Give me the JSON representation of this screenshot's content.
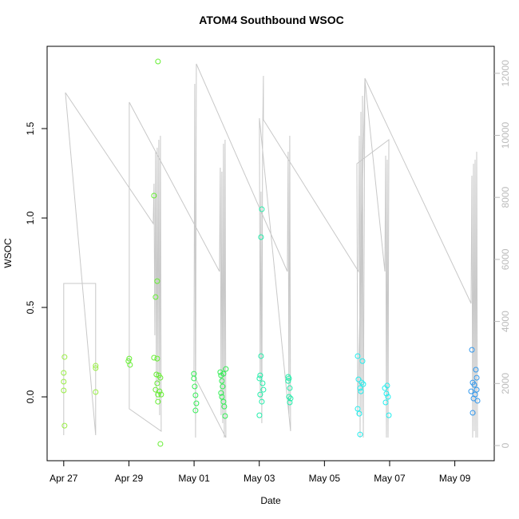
{
  "chart_data": {
    "type": "scatter",
    "title": "ATOM4 Southbound WSOC",
    "x_label": "Date",
    "y_label": "WSOC",
    "xlim": [
      -0.51,
      13.21
    ],
    "xticks": [
      {
        "value": 0,
        "label": "Apr 27"
      },
      {
        "value": 2,
        "label": "Apr 29"
      },
      {
        "value": 4,
        "label": "May 01"
      },
      {
        "value": 6,
        "label": "May 03"
      },
      {
        "value": 8,
        "label": "May 05"
      },
      {
        "value": 10,
        "label": "May 07"
      },
      {
        "value": 12,
        "label": "May 09"
      }
    ],
    "ylim": [
      -0.357,
      1.96
    ],
    "yticks": [
      {
        "value": 0,
        "label": "0.0"
      },
      0.5,
      {
        "value": 1,
        "label": "1.0"
      },
      1.5
    ],
    "y2lim": [
      -489,
      12870
    ],
    "y2ticks": [
      0,
      2000,
      4000,
      6000,
      8000,
      10000,
      12000
    ],
    "point_groups": [
      {
        "color": "#99ee44",
        "x": [
          0.025,
          0,
          0,
          0,
          0.025,
          0.98,
          0.98,
          0.98
        ],
        "values": [
          0.223,
          0.134,
          0.085,
          0.036,
          -0.161,
          0.174,
          0.161,
          0.027
        ]
      },
      {
        "color": "#66ee33",
        "x": [
          2.01,
          2.034,
          1.985,
          2.892,
          2.77,
          2.868,
          2.819,
          2.77,
          2.868,
          2.819,
          2.843,
          2.917,
          2.966,
          2.868,
          2.941,
          2.99,
          2.892,
          2.966,
          2.892
        ],
        "values": [
          0.214,
          0.179,
          0.2,
          1.875,
          1.125,
          0.647,
          0.558,
          0.219,
          0.214,
          0.04,
          0.125,
          0.12,
          0.107,
          0.076,
          0.031,
          0.013,
          -0.027,
          -0.263,
          0.013
        ]
      },
      {
        "color": "#33ee55",
        "x": [
          3.995,
          3.995,
          4.02,
          4.044,
          4.069,
          4.044,
          4.804,
          4.828,
          4.853,
          4.877,
          4.828,
          4.902,
          4.926,
          4.951,
          4.975,
          4.902,
          4.853
        ],
        "values": [
          0.129,
          0.103,
          0.058,
          0.009,
          -0.036,
          -0.076,
          0.138,
          0.12,
          0.089,
          0.058,
          0.022,
          -0.027,
          -0.054,
          -0.107,
          0.156,
          0.129,
          0
        ]
      },
      {
        "color": "#22eeaa",
        "x": [
          6.078,
          6.054,
          6.054,
          6.029,
          6.005,
          6.103,
          6.127,
          6.029,
          6.078,
          6.005,
          6.912,
          6.887,
          6.936,
          6.912,
          6.961,
          6.936,
          6.887
        ],
        "values": [
          1.049,
          0.893,
          0.228,
          0.12,
          0.103,
          0.076,
          0.04,
          0.013,
          -0.027,
          -0.103,
          0.103,
          0.089,
          0.049,
          0,
          -0.009,
          -0.031,
          0.112
        ]
      },
      {
        "color": "#22eeee",
        "x": [
          9.02,
          9.167,
          9.044,
          9.093,
          9.191,
          9.118,
          9.142,
          9.02,
          9.069,
          9.093,
          9.853,
          9.926,
          9.902,
          9.951,
          9.877,
          9.975
        ],
        "values": [
          0.228,
          0.2,
          0.098,
          0.049,
          0.071,
          0.031,
          0.08,
          -0.067,
          -0.094,
          -0.21,
          0.049,
          0.063,
          0.018,
          0,
          -0.031,
          -0.103
        ]
      },
      {
        "color": "#3399ee",
        "x": [
          12.525,
          12.647,
          12.672,
          12.549,
          12.598,
          12.5,
          12.623,
          12.574,
          12.696,
          12.549,
          12.672
        ],
        "values": [
          0.263,
          0.152,
          0.107,
          0.08,
          0.067,
          0.031,
          0.013,
          -0.009,
          -0.022,
          -0.089,
          0.04
        ]
      }
    ],
    "line": {
      "axis": "y2",
      "color": "#c8c8c8",
      "x": [
        0,
        0,
        0.98,
        0.98,
        0.05,
        2.745,
        2.77,
        2.794,
        2.819,
        2.843,
        2.868,
        2.892,
        2.917,
        2.941,
        2.966,
        2.99,
        2.01,
        2.01,
        4.779,
        4.804,
        4.828,
        4.853,
        4.877,
        4.902,
        4.926,
        4.951,
        4.975,
        3.995,
        4.02,
        4.044,
        4.069,
        6.863,
        6.887,
        6.912,
        6.936,
        6.961,
        6.005,
        6.029,
        6.054,
        6.078,
        6.103,
        6.127,
        6.127,
        9.044,
        9.069,
        9.093,
        9.118,
        9.142,
        9.167,
        9.191,
        9.24,
        9.853,
        9.877,
        9.902,
        9.926,
        9.951,
        9.975,
        8.995,
        9.02,
        9.24,
        12.5,
        12.525,
        12.549,
        12.574,
        12.598,
        12.623,
        12.647,
        12.672,
        12.696
      ],
      "values": [
        335,
        5225,
        5225,
        335,
        11377,
        7156,
        8443,
        3552,
        9472,
        1493,
        9601,
        2008,
        9858,
        978,
        9987,
        463,
        1184,
        11068,
        5611,
        8957,
        978,
        8829,
        721,
        9730,
        257,
        9858,
        257,
        2265,
        11660,
        257,
        12304,
        5611,
        9472,
        978,
        9987,
        463,
        10553,
        1493,
        8185,
        721,
        9987,
        11918,
        10502,
        5611,
        9987,
        257,
        10759,
        978,
        11274,
        257,
        11789,
        5611,
        9344,
        257,
        9215,
        257,
        9858,
        9086,
        978,
        11840,
        4582,
        8700,
        257,
        9086,
        463,
        9215,
        257,
        9472,
        257
      ]
    }
  }
}
